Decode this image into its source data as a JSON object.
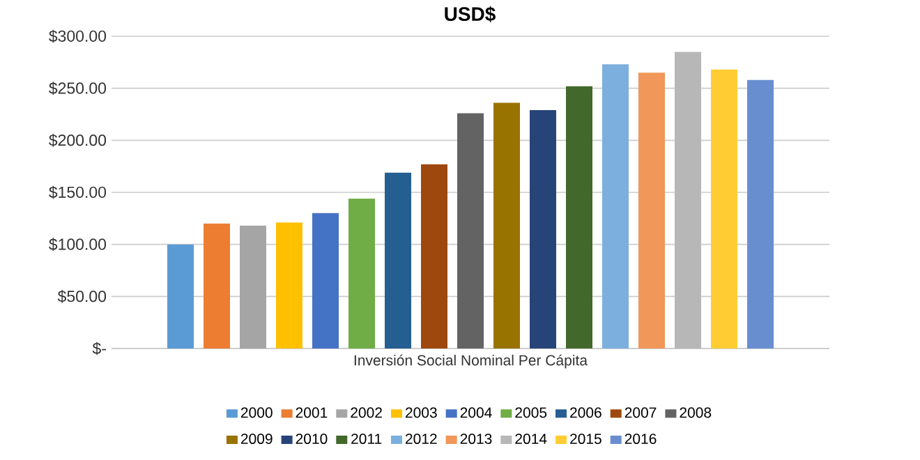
{
  "chart_data": {
    "type": "bar",
    "title": "USD$",
    "xlabel": "Inversión Social Nominal Per Cápita",
    "categories": [
      null
    ],
    "series": [
      {
        "name": "2000",
        "color": "#5b9bd5",
        "values": [
          100
        ]
      },
      {
        "name": "2001",
        "color": "#ed7d31",
        "values": [
          120
        ]
      },
      {
        "name": "2002",
        "color": "#a5a5a5",
        "values": [
          118
        ]
      },
      {
        "name": "2003",
        "color": "#ffc000",
        "values": [
          121
        ]
      },
      {
        "name": "2004",
        "color": "#4472c4",
        "values": [
          130
        ]
      },
      {
        "name": "2005",
        "color": "#70ad47",
        "values": [
          144
        ]
      },
      {
        "name": "2006",
        "color": "#255e91",
        "values": [
          169
        ]
      },
      {
        "name": "2007",
        "color": "#9e480e",
        "values": [
          177
        ]
      },
      {
        "name": "2008",
        "color": "#636363",
        "values": [
          226
        ]
      },
      {
        "name": "2009",
        "color": "#997300",
        "values": [
          236
        ]
      },
      {
        "name": "2010",
        "color": "#264478",
        "values": [
          229
        ]
      },
      {
        "name": "2011",
        "color": "#43682b",
        "values": [
          252
        ]
      },
      {
        "name": "2012",
        "color": "#7cafdd",
        "values": [
          273
        ]
      },
      {
        "name": "2013",
        "color": "#f1975a",
        "values": [
          265
        ]
      },
      {
        "name": "2014",
        "color": "#b7b7b7",
        "values": [
          285
        ]
      },
      {
        "name": "2015",
        "color": "#ffcd33",
        "values": [
          268
        ]
      },
      {
        "name": "2016",
        "color": "#698ed0",
        "values": [
          258
        ]
      }
    ],
    "ylim": [
      0,
      300
    ],
    "yticks": [
      {
        "value": 0,
        "label": "$-"
      },
      {
        "value": 50,
        "label": "$50.00"
      },
      {
        "value": 100,
        "label": "$100.00"
      },
      {
        "value": 150,
        "label": "$150.00"
      },
      {
        "value": 200,
        "label": "$200.00"
      },
      {
        "value": 250,
        "label": "$250.00"
      },
      {
        "value": 300,
        "label": "$300.00"
      }
    ],
    "grid": "y",
    "legend": "bottom"
  }
}
